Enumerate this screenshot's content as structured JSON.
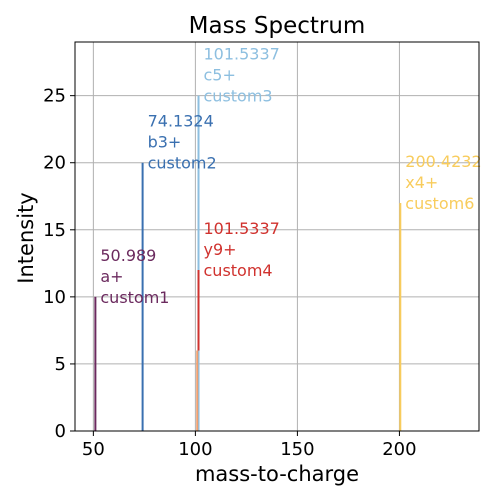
{
  "chart_data": {
    "type": "bar",
    "title": "Mass Spectrum",
    "xlabel": "mass-to-charge",
    "ylabel": "Intensity",
    "xlim": [
      41,
      239
    ],
    "ylim": [
      0,
      29
    ],
    "xticks": [
      50,
      100,
      150,
      200
    ],
    "yticks": [
      0,
      5,
      10,
      15,
      20,
      25
    ],
    "grid": true,
    "peaks": [
      {
        "mz": 50.989,
        "intensity": 10,
        "color": "#6b2a5e",
        "lines": [
          "50.989",
          "a+",
          "custom1"
        ]
      },
      {
        "mz": 74.1324,
        "intensity": 20,
        "color": "#3a70b0",
        "lines": [
          "74.1324",
          "b3+",
          "custom2"
        ]
      },
      {
        "mz": 101.5337,
        "intensity": 25,
        "color": "#8dbfe0",
        "lines": [
          "101.5337",
          "c5+",
          "custom3"
        ]
      },
      {
        "mz": 101.5337,
        "intensity": 12,
        "base": 6,
        "color": "#d0322e",
        "lines": [
          "101.5337",
          "y9+",
          "custom4"
        ]
      },
      {
        "mz": 100.9,
        "intensity": 6,
        "color": "#f0a070",
        "lines": []
      },
      {
        "mz": 200.4232,
        "intensity": 17,
        "color": "#f8cc5c",
        "lines": [
          "200.4232",
          "x4+",
          "custom6"
        ]
      }
    ]
  }
}
